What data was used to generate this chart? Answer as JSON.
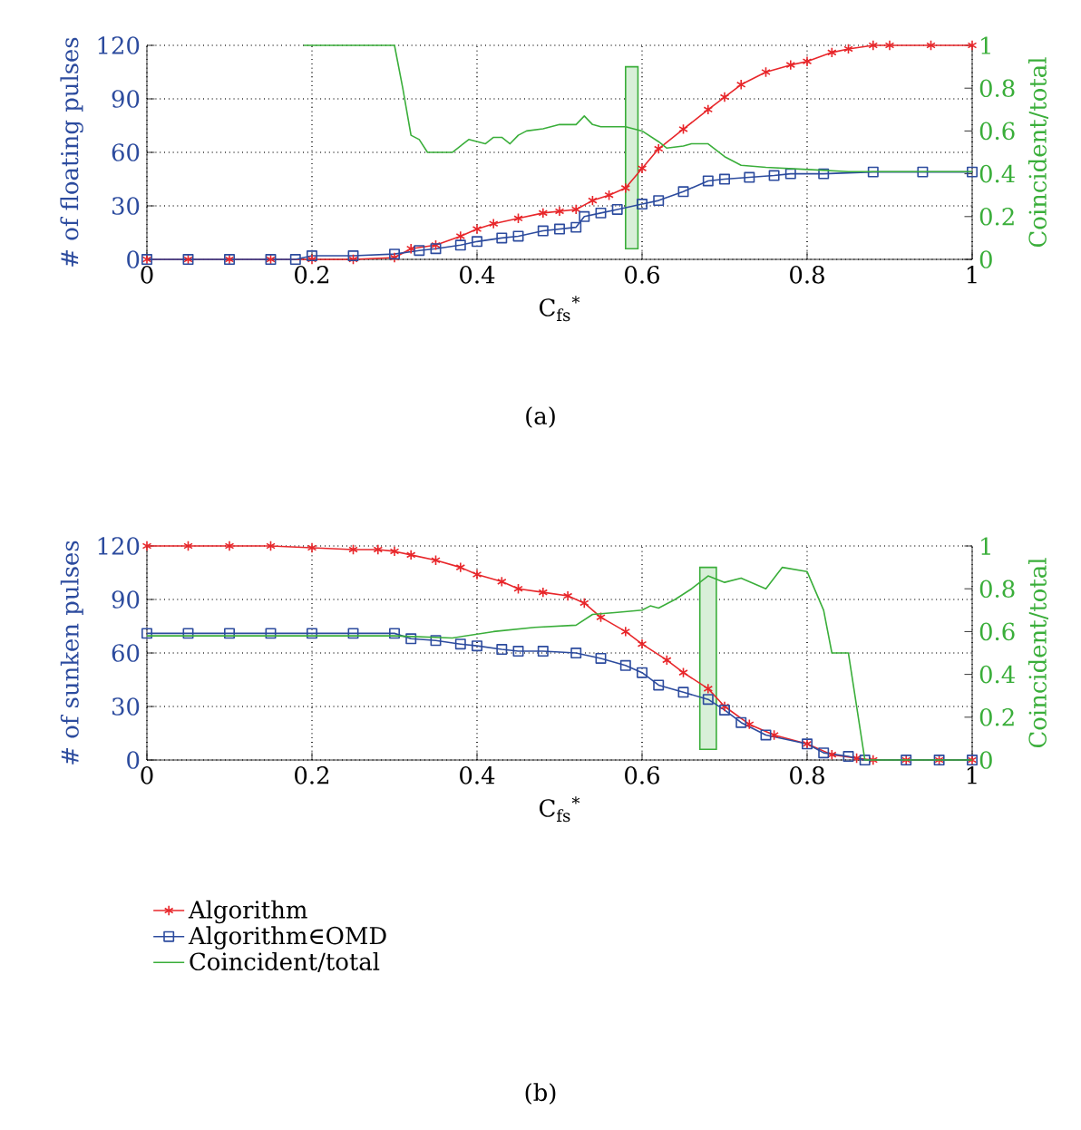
{
  "chart_data": [
    {
      "type": "line",
      "xlabel": "C$_{fs}$$^{*}$",
      "ylabel": "# of floating pulses",
      "y2label": "Coincident/total",
      "xlim": [
        0,
        1
      ],
      "xticks": [
        0,
        0.2,
        0.4,
        0.6,
        0.8,
        1
      ],
      "ylim": [
        0,
        120
      ],
      "yticks": [
        0,
        30,
        60,
        90,
        120
      ],
      "y2lim": [
        0,
        1
      ],
      "y2ticks": [
        0,
        0.2,
        0.4,
        0.6,
        0.8,
        1
      ],
      "grid": true,
      "line_style": "solid",
      "annotations": [
        "(a)"
      ],
      "bands": [
        {
          "axis": "x",
          "from": 0.58,
          "to": 0.595,
          "color": "#3aae3a"
        }
      ],
      "series": [
        {
          "color": "#e8262a",
          "marker": "cross",
          "x": [
            0,
            0.05,
            0.1,
            0.15,
            0.2,
            0.25,
            0.3,
            0.32,
            0.35,
            0.38,
            0.4,
            0.42,
            0.45,
            0.48,
            0.5,
            0.52,
            0.54,
            0.56,
            0.58,
            0.6,
            0.62,
            0.65,
            0.68,
            0.7,
            0.72,
            0.75,
            0.78,
            0.8,
            0.83,
            0.85,
            0.88,
            0.9,
            0.95,
            1
          ],
          "values": [
            0,
            0,
            0,
            0,
            0,
            0,
            1,
            6,
            8,
            13,
            17,
            20,
            23,
            26,
            27,
            28,
            33,
            36,
            40,
            51,
            62,
            73,
            84,
            91,
            98,
            105,
            109,
            111,
            116,
            118,
            120,
            120,
            120,
            120
          ]
        },
        {
          "color": "#2c4b9e",
          "marker": "square",
          "x": [
            0,
            0.05,
            0.1,
            0.15,
            0.18,
            0.2,
            0.25,
            0.3,
            0.33,
            0.35,
            0.38,
            0.4,
            0.43,
            0.45,
            0.48,
            0.5,
            0.52,
            0.53,
            0.55,
            0.57,
            0.6,
            0.62,
            0.65,
            0.68,
            0.7,
            0.73,
            0.76,
            0.78,
            0.82,
            0.88,
            0.94,
            1
          ],
          "values": [
            0,
            0,
            0,
            0,
            0,
            2,
            2,
            3,
            5,
            6,
            8,
            10,
            12,
            13,
            16,
            17,
            18,
            24,
            26,
            28,
            31,
            33,
            38,
            44,
            45,
            46,
            47,
            48,
            48,
            49,
            49,
            49
          ]
        },
        {
          "color": "#3aae3a",
          "marker": "none",
          "axis": "y2",
          "x": [
            0.19,
            0.3,
            0.31,
            0.32,
            0.33,
            0.34,
            0.37,
            0.39,
            0.41,
            0.42,
            0.43,
            0.44,
            0.45,
            0.46,
            0.48,
            0.5,
            0.52,
            0.53,
            0.54,
            0.55,
            0.58,
            0.6,
            0.62,
            0.63,
            0.65,
            0.66,
            0.68,
            0.7,
            0.72,
            0.75,
            0.8,
            0.85,
            0.9,
            1
          ],
          "values": [
            1,
            1,
            0.8,
            0.58,
            0.56,
            0.5,
            0.5,
            0.56,
            0.54,
            0.57,
            0.57,
            0.54,
            0.58,
            0.6,
            0.61,
            0.63,
            0.63,
            0.67,
            0.63,
            0.62,
            0.62,
            0.6,
            0.55,
            0.52,
            0.53,
            0.54,
            0.54,
            0.48,
            0.44,
            0.43,
            0.42,
            0.41,
            0.41,
            0.41
          ]
        }
      ]
    },
    {
      "type": "line",
      "xlabel": "C$_{fs}$$^{*}$",
      "ylabel": "# of sunken pulses",
      "y2label": "Coincident/total",
      "xlim": [
        0,
        1
      ],
      "xticks": [
        0,
        0.2,
        0.4,
        0.6,
        0.8,
        1
      ],
      "ylim": [
        0,
        120
      ],
      "yticks": [
        0,
        30,
        60,
        90,
        120
      ],
      "y2lim": [
        0,
        1
      ],
      "y2ticks": [
        0,
        0.2,
        0.4,
        0.6,
        0.8,
        1
      ],
      "grid": true,
      "line_style": "solid",
      "legend": "bottom",
      "annotations": [
        "(b)"
      ],
      "bands": [
        {
          "axis": "x",
          "from": 0.67,
          "to": 0.69,
          "color": "#3aae3a"
        }
      ],
      "series": [
        {
          "name": "Algorithm",
          "color": "#e8262a",
          "marker": "cross",
          "x": [
            0,
            0.05,
            0.1,
            0.15,
            0.2,
            0.25,
            0.28,
            0.3,
            0.32,
            0.35,
            0.38,
            0.4,
            0.43,
            0.45,
            0.48,
            0.51,
            0.53,
            0.55,
            0.58,
            0.6,
            0.63,
            0.65,
            0.68,
            0.7,
            0.73,
            0.76,
            0.8,
            0.83,
            0.86,
            0.88,
            0.92,
            0.96,
            1
          ],
          "values": [
            120,
            120,
            120,
            120,
            119,
            118,
            118,
            117,
            115,
            112,
            108,
            104,
            100,
            96,
            94,
            92,
            88,
            80,
            72,
            65,
            56,
            49,
            40,
            30,
            20,
            14,
            9,
            3,
            1,
            0,
            0,
            0,
            0
          ]
        },
        {
          "name": "Algorithm∈OMD",
          "color": "#2c4b9e",
          "marker": "square",
          "x": [
            0,
            0.05,
            0.1,
            0.15,
            0.2,
            0.25,
            0.3,
            0.32,
            0.35,
            0.38,
            0.4,
            0.43,
            0.45,
            0.48,
            0.52,
            0.55,
            0.58,
            0.6,
            0.62,
            0.65,
            0.68,
            0.7,
            0.72,
            0.75,
            0.8,
            0.82,
            0.85,
            0.87,
            0.92,
            0.96,
            1
          ],
          "values": [
            71,
            71,
            71,
            71,
            71,
            71,
            71,
            68,
            67,
            65,
            64,
            62,
            61,
            61,
            60,
            57,
            53,
            49,
            42,
            38,
            34,
            28,
            21,
            14,
            9,
            4,
            2,
            0,
            0,
            0,
            0
          ]
        },
        {
          "name": "Coincident/total",
          "color": "#3aae3a",
          "marker": "none",
          "axis": "y2",
          "x": [
            0,
            0.1,
            0.2,
            0.3,
            0.37,
            0.42,
            0.47,
            0.52,
            0.54,
            0.57,
            0.6,
            0.61,
            0.62,
            0.64,
            0.66,
            0.68,
            0.7,
            0.72,
            0.75,
            0.77,
            0.8,
            0.82,
            0.83,
            0.85,
            0.87,
            0.9,
            1
          ],
          "values": [
            0.58,
            0.58,
            0.58,
            0.58,
            0.57,
            0.6,
            0.62,
            0.63,
            0.68,
            0.69,
            0.7,
            0.72,
            0.71,
            0.75,
            0.8,
            0.86,
            0.83,
            0.85,
            0.8,
            0.9,
            0.88,
            0.7,
            0.5,
            0.5,
            0,
            0,
            0
          ]
        }
      ]
    }
  ]
}
